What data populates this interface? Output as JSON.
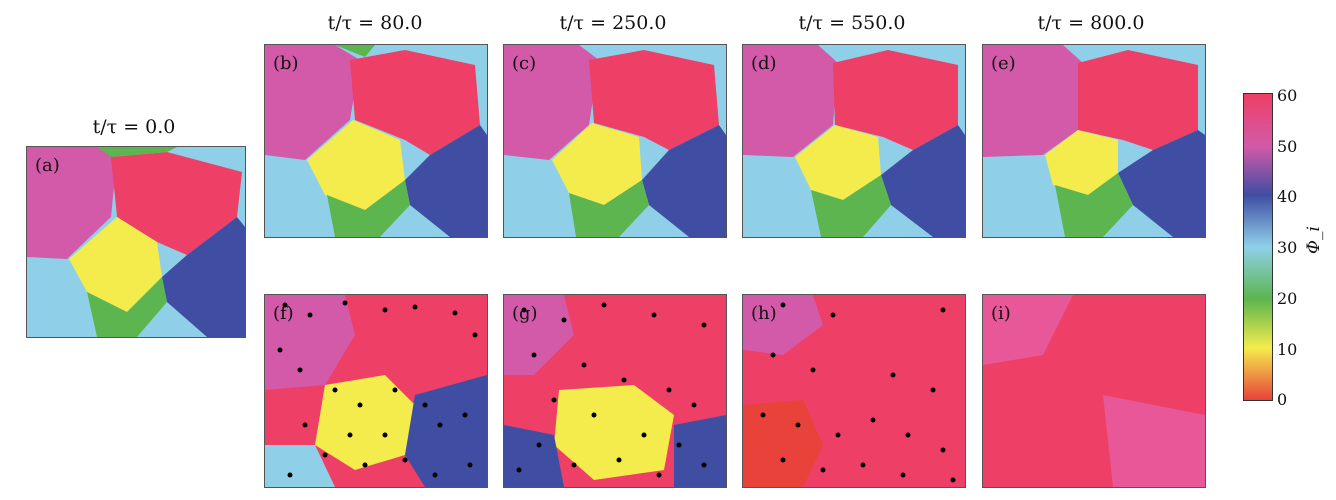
{
  "titles": [
    "t/τ = 0.0",
    "t/τ = 80.0",
    "t/τ = 250.0",
    "t/τ = 550.0",
    "t/τ = 800.0"
  ],
  "panel_labels": [
    "(a)",
    "(b)",
    "(c)",
    "(d)",
    "(e)",
    "(f)",
    "(g)",
    "(h)",
    "(i)"
  ],
  "colorbar": {
    "label": "Φ_i",
    "ticks": [
      "0",
      "10",
      "20",
      "30",
      "40",
      "50",
      "60"
    ],
    "colors": [
      "#e8423a",
      "#f4ec4c",
      "#5cb54e",
      "#8fd0e8",
      "#3f4da3",
      "#d35aa8",
      "#ee3f66"
    ]
  }
}
